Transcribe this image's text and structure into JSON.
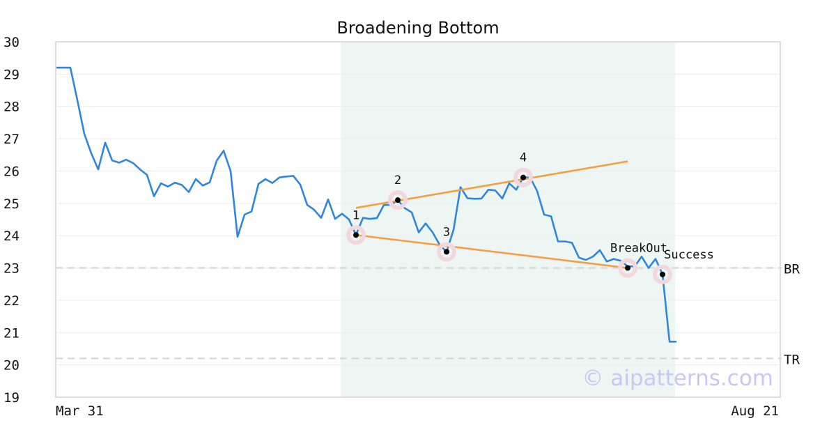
{
  "chart_data": {
    "type": "line",
    "title": "Broadening Bottom",
    "ylim": [
      19,
      30
    ],
    "y_ticks": [
      19,
      20,
      21,
      22,
      23,
      24,
      25,
      26,
      27,
      28,
      29,
      30
    ],
    "x_tick_labels": {
      "start": "Mar 31",
      "end": "Aug 21"
    },
    "grid": {
      "horizontal": true,
      "vertical": false
    },
    "series": [
      {
        "color": "#2e86de",
        "values": [
          29.2,
          29.2,
          29.2,
          28.2,
          27.15,
          26.55,
          26.05,
          26.88,
          26.33,
          26.26,
          26.35,
          26.25,
          26.05,
          25.88,
          25.22,
          25.62,
          25.52,
          25.64,
          25.57,
          25.35,
          25.75,
          25.55,
          25.65,
          26.32,
          26.63,
          26.0,
          23.96,
          24.65,
          24.75,
          25.6,
          25.75,
          25.63,
          25.8,
          25.83,
          25.85,
          25.58,
          24.95,
          24.8,
          24.55,
          25.12,
          24.52,
          24.68,
          24.5,
          24.02,
          24.55,
          24.52,
          24.54,
          24.95,
          24.95,
          25.1,
          24.85,
          24.72,
          24.1,
          24.38,
          24.1,
          23.72,
          23.5,
          24.18,
          25.5,
          25.16,
          25.14,
          25.15,
          25.42,
          25.4,
          25.15,
          25.62,
          25.42,
          25.8,
          25.8,
          25.38,
          24.65,
          24.6,
          23.82,
          23.82,
          23.78,
          23.32,
          23.25,
          23.35,
          23.55,
          23.2,
          23.28,
          23.22,
          23.05,
          23.05,
          23.35,
          23.0,
          23.28,
          22.8,
          20.72,
          20.72
        ]
      }
    ],
    "highlight_region": {
      "from_index": 41,
      "to_index": 88,
      "color": "#eef6f3"
    },
    "trend_lines": [
      {
        "color": "#f59e42",
        "from": {
          "index": 43,
          "value": 24.86
        },
        "to": {
          "index": 82,
          "value": 26.3
        }
      },
      {
        "color": "#f59e42",
        "from": {
          "index": 43,
          "value": 24.02
        },
        "to": {
          "index": 82,
          "value": 23.0
        }
      }
    ],
    "horizontal_levels": [
      {
        "label": "BR",
        "value": 23.0,
        "color": "#d9d9d9"
      },
      {
        "label": "TR",
        "value": 20.2,
        "color": "#d9d9d9"
      }
    ],
    "markers": [
      {
        "label": "1",
        "index": 43,
        "value": 24.02,
        "label_position": "above"
      },
      {
        "label": "2",
        "index": 49,
        "value": 25.1,
        "label_position": "above"
      },
      {
        "label": "3",
        "index": 56,
        "value": 23.5,
        "label_position": "above"
      },
      {
        "label": "4",
        "index": 67,
        "value": 25.8,
        "label_position": "above"
      },
      {
        "label": "BreakOut",
        "index": 82,
        "value": 23.0,
        "label_position": "above"
      },
      {
        "label": "Success",
        "index": 87,
        "value": 22.8,
        "label_position": "above"
      }
    ],
    "watermark": "© aipatterns.com"
  }
}
